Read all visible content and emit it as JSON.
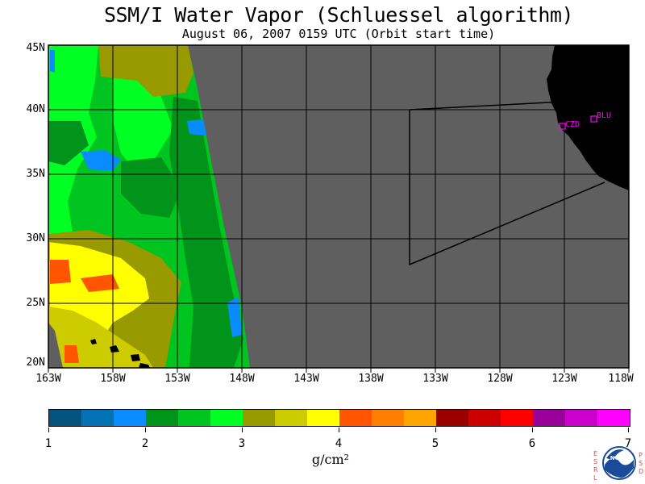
{
  "title": "SSM/I Water Vapor (Schluessel algorithm)",
  "subtitle": "August 06, 2007  0159 UTC  (Orbit start time)",
  "map": {
    "lat_labels": [
      "45N",
      "40N",
      "35N",
      "30N",
      "25N",
      "20N"
    ],
    "lon_labels": [
      "163W",
      "158W",
      "153W",
      "148W",
      "143W",
      "138W",
      "133W",
      "128W",
      "123W",
      "118W"
    ],
    "stations": [
      "CZD",
      "BLU"
    ],
    "colors": {
      "no_data": "#5f5f5f",
      "land": "#000000",
      "grid": "#000000",
      "station": "#ff00ff"
    }
  },
  "colorbar": {
    "colors": [
      "#05537f",
      "#0672b6",
      "#0a8cff",
      "#00951a",
      "#00c41f",
      "#00ff23",
      "#999900",
      "#cccc00",
      "#ffff00",
      "#ff5500",
      "#ff7f00",
      "#ffa500",
      "#9b0000",
      "#cc0000",
      "#ff0000",
      "#990099",
      "#cc00cc",
      "#ff00ff"
    ],
    "tick_labels": [
      "1",
      "2",
      "3",
      "4",
      "5",
      "6",
      "7"
    ],
    "units": "g/cm²"
  },
  "logo": {
    "left_letters": "ESRL",
    "right_letters": "PSD",
    "text": "NOAA"
  }
}
